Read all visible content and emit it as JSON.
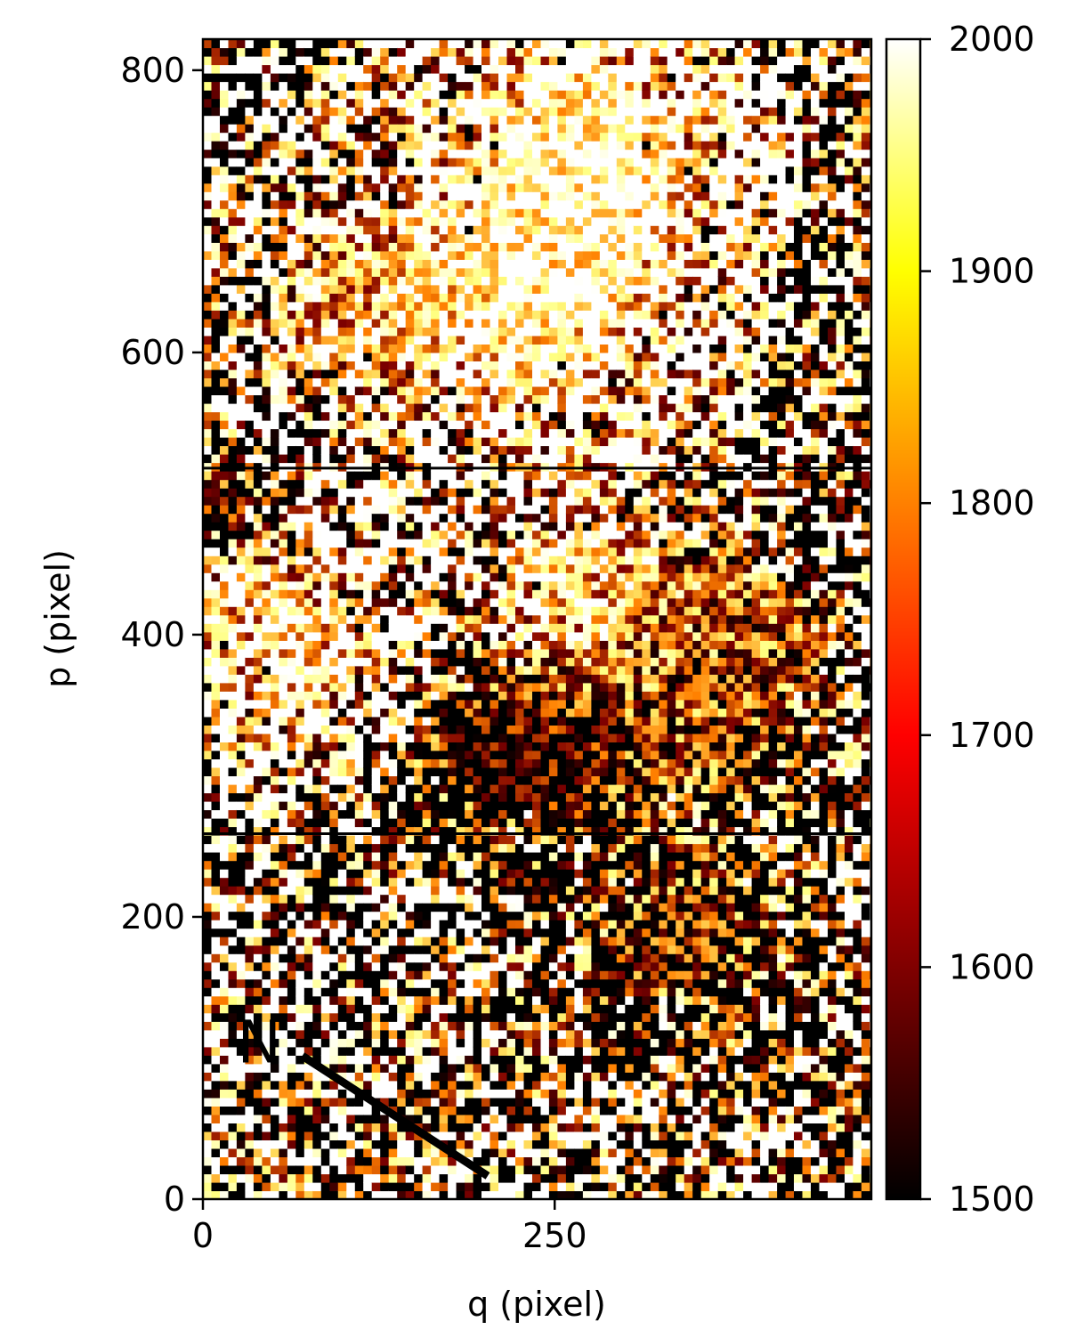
{
  "chart_data": {
    "type": "heatmap",
    "title": "",
    "xlabel": "q (pixel)",
    "ylabel": "p (pixel)",
    "xlim": [
      0,
      475
    ],
    "ylim": [
      0,
      822
    ],
    "xticks": [
      0,
      250
    ],
    "yticks": [
      0,
      200,
      400,
      600,
      800
    ],
    "colormap": "afmhot",
    "colorbar": {
      "range": [
        1500,
        2000
      ],
      "ticks": [
        1500,
        1600,
        1700,
        1800,
        1900,
        2000
      ]
    },
    "grid": false,
    "annotations": [
      {
        "text": "N",
        "x": 40,
        "y": 112
      }
    ],
    "compass_arrow": {
      "from": [
        200,
        18
      ],
      "to": [
        73,
        100
      ]
    },
    "detector_gaps": [
      {
        "orientation": "horizontal",
        "p": 259
      },
      {
        "orientation": "horizontal",
        "p": 518
      }
    ],
    "features": [
      {
        "q": 270,
        "p": 735,
        "sigma": 55,
        "value": 1990
      },
      {
        "q": 230,
        "p": 640,
        "sigma": 60,
        "value": 1950
      },
      {
        "q": 110,
        "p": 640,
        "sigma": 45,
        "value": 1820
      },
      {
        "q": 60,
        "p": 395,
        "sigma": 45,
        "value": 1900
      },
      {
        "q": 270,
        "p": 430,
        "sigma": 40,
        "value": 1900
      },
      {
        "q": 320,
        "p": 400,
        "sigma": 45,
        "value": 1740
      },
      {
        "q": 400,
        "p": 410,
        "sigma": 35,
        "value": 1700
      },
      {
        "q": 370,
        "p": 340,
        "sigma": 45,
        "value": 1640
      },
      {
        "q": 250,
        "p": 310,
        "sigma": 40,
        "value": 1520
      },
      {
        "q": 200,
        "p": 320,
        "sigma": 30,
        "value": 1540
      },
      {
        "q": 340,
        "p": 190,
        "sigma": 40,
        "value": 1590
      },
      {
        "q": 10,
        "p": 500,
        "sigma": 20,
        "value": 1620
      }
    ]
  }
}
